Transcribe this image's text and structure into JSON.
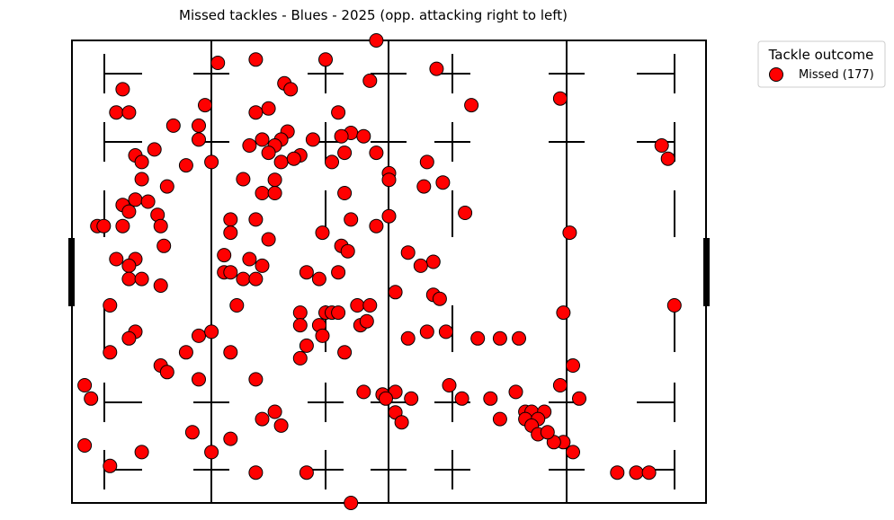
{
  "chart_data": {
    "type": "scatter",
    "title": "Missed tackles - Blues - 2025  (opp. attacking right to left)",
    "xlim": [
      0,
      100
    ],
    "ylim": [
      0,
      70
    ],
    "grid": false,
    "legend_placement": "top-right outside",
    "legend": {
      "title": "Tackle outcome",
      "entries": [
        {
          "label": "Missed (177)",
          "color": "#ff0000"
        }
      ]
    },
    "colors": {
      "marker_fill": "#ff0000",
      "marker_edge": "#000000",
      "pitch_lines": "#000000"
    },
    "series": [
      {
        "label": "Missed (177)",
        "points": [
          [
            48.0,
            70.0
          ],
          [
            23.0,
            66.6
          ],
          [
            29.0,
            67.1
          ],
          [
            40.0,
            67.1
          ],
          [
            57.5,
            65.7
          ],
          [
            8.0,
            62.6
          ],
          [
            33.5,
            63.5
          ],
          [
            34.5,
            62.6
          ],
          [
            47.0,
            63.9
          ],
          [
            77.0,
            61.2
          ],
          [
            21.0,
            60.2
          ],
          [
            31.0,
            59.7
          ],
          [
            63.0,
            60.2
          ],
          [
            7.0,
            59.1
          ],
          [
            9.0,
            59.1
          ],
          [
            29.0,
            59.1
          ],
          [
            42.0,
            59.1
          ],
          [
            16.0,
            57.1
          ],
          [
            20.0,
            57.1
          ],
          [
            34.0,
            56.2
          ],
          [
            44.0,
            56.0
          ],
          [
            42.5,
            55.5
          ],
          [
            46.0,
            55.5
          ],
          [
            20.0,
            55.0
          ],
          [
            30.0,
            55.0
          ],
          [
            33.0,
            55.0
          ],
          [
            38.0,
            55.0
          ],
          [
            28.0,
            54.1
          ],
          [
            32.0,
            54.1
          ],
          [
            13.0,
            53.5
          ],
          [
            31.0,
            53.0
          ],
          [
            10.0,
            52.6
          ],
          [
            36.0,
            52.6
          ],
          [
            43.0,
            53.0
          ],
          [
            48.0,
            53.0
          ],
          [
            93.0,
            54.1
          ],
          [
            94.0,
            52.1
          ],
          [
            11.0,
            51.6
          ],
          [
            22.0,
            51.6
          ],
          [
            33.0,
            51.6
          ],
          [
            35.0,
            52.1
          ],
          [
            41.0,
            51.6
          ],
          [
            56.0,
            51.6
          ],
          [
            18.0,
            51.1
          ],
          [
            27.0,
            49.0
          ],
          [
            11.0,
            49.0
          ],
          [
            50.0,
            49.9
          ],
          [
            50.0,
            48.9
          ],
          [
            15.0,
            47.9
          ],
          [
            32.0,
            48.9
          ],
          [
            55.5,
            47.9
          ],
          [
            58.5,
            48.5
          ],
          [
            10.0,
            45.9
          ],
          [
            30.0,
            46.9
          ],
          [
            32.0,
            46.9
          ],
          [
            43.0,
            46.9
          ],
          [
            8.0,
            45.1
          ],
          [
            12.0,
            45.6
          ],
          [
            9.0,
            44.1
          ],
          [
            13.5,
            43.6
          ],
          [
            62.0,
            43.9
          ],
          [
            25.0,
            42.9
          ],
          [
            29.0,
            42.9
          ],
          [
            44.0,
            42.9
          ],
          [
            4.0,
            41.9
          ],
          [
            5.0,
            41.9
          ],
          [
            8.0,
            41.9
          ],
          [
            14.0,
            41.9
          ],
          [
            48.0,
            41.9
          ],
          [
            50.0,
            43.4
          ],
          [
            25.0,
            40.9
          ],
          [
            39.5,
            40.9
          ],
          [
            31.0,
            39.9
          ],
          [
            78.5,
            40.9
          ],
          [
            42.5,
            38.9
          ],
          [
            43.5,
            38.1
          ],
          [
            53.0,
            37.9
          ],
          [
            24.0,
            37.5
          ],
          [
            7.0,
            36.9
          ],
          [
            10.0,
            36.9
          ],
          [
            9.0,
            35.9
          ],
          [
            30.0,
            35.9
          ],
          [
            57.0,
            36.5
          ],
          [
            24.0,
            34.9
          ],
          [
            25.0,
            34.9
          ],
          [
            27.0,
            33.9
          ],
          [
            29.0,
            33.9
          ],
          [
            37.0,
            34.9
          ],
          [
            42.0,
            34.9
          ],
          [
            9.0,
            33.9
          ],
          [
            11.0,
            33.9
          ],
          [
            39.0,
            33.9
          ],
          [
            14.0,
            32.9
          ],
          [
            51.0,
            31.9
          ],
          [
            57.0,
            31.5
          ],
          [
            6.0,
            29.9
          ],
          [
            26.0,
            29.9
          ],
          [
            58.0,
            30.9
          ],
          [
            36.0,
            28.8
          ],
          [
            40.0,
            28.8
          ],
          [
            41.0,
            28.8
          ],
          [
            42.0,
            28.8
          ],
          [
            77.5,
            28.8
          ],
          [
            95.0,
            29.9
          ],
          [
            36.0,
            26.9
          ],
          [
            39.0,
            26.9
          ],
          [
            45.5,
            26.9
          ],
          [
            46.5,
            27.5
          ],
          [
            10.0,
            25.9
          ],
          [
            20.0,
            25.3
          ],
          [
            9.0,
            24.9
          ],
          [
            22.0,
            25.9
          ],
          [
            39.5,
            25.3
          ],
          [
            53.0,
            24.9
          ],
          [
            56.0,
            25.9
          ],
          [
            59.0,
            25.9
          ],
          [
            67.5,
            24.9
          ],
          [
            64.0,
            24.9
          ],
          [
            70.5,
            24.9
          ],
          [
            37.0,
            23.8
          ],
          [
            6.0,
            22.8
          ],
          [
            18.0,
            22.8
          ],
          [
            25.0,
            22.8
          ],
          [
            43.0,
            22.8
          ],
          [
            36.0,
            21.9
          ],
          [
            79.0,
            20.8
          ],
          [
            14.0,
            20.8
          ],
          [
            15.0,
            19.8
          ],
          [
            20.0,
            18.7
          ],
          [
            29.0,
            18.7
          ],
          [
            2.0,
            17.8
          ],
          [
            59.5,
            17.8
          ],
          [
            77.0,
            17.8
          ],
          [
            51.0,
            16.8
          ],
          [
            49.0,
            16.4
          ],
          [
            3.0,
            15.8
          ],
          [
            49.5,
            15.8
          ],
          [
            53.5,
            15.8
          ],
          [
            61.5,
            15.8
          ],
          [
            66.0,
            15.8
          ],
          [
            80.0,
            15.8
          ],
          [
            51.0,
            13.7
          ],
          [
            71.5,
            13.8
          ],
          [
            72.5,
            13.8
          ],
          [
            74.5,
            13.8
          ],
          [
            32.0,
            13.8
          ],
          [
            30.0,
            12.7
          ],
          [
            71.5,
            12.7
          ],
          [
            73.5,
            12.7
          ],
          [
            33.0,
            11.7
          ],
          [
            52.0,
            12.2
          ],
          [
            67.5,
            12.7
          ],
          [
            72.5,
            11.7
          ],
          [
            19.0,
            10.7
          ],
          [
            73.5,
            10.4
          ],
          [
            25.0,
            9.7
          ],
          [
            77.5,
            9.2
          ],
          [
            2.0,
            8.7
          ],
          [
            11.0,
            7.7
          ],
          [
            22.0,
            7.7
          ],
          [
            79.0,
            7.7
          ],
          [
            6.0,
            5.6
          ],
          [
            29.0,
            4.6
          ],
          [
            37.0,
            4.6
          ],
          [
            86.0,
            4.6
          ],
          [
            89.0,
            4.6
          ],
          [
            91.0,
            4.6
          ],
          [
            44.0,
            0.0
          ],
          [
            76.0,
            9.2
          ],
          [
            46.0,
            16.8
          ],
          [
            70.0,
            16.8
          ],
          [
            75.0,
            10.7
          ],
          [
            45.0,
            29.9
          ],
          [
            47.0,
            29.9
          ],
          [
            28.0,
            36.9
          ],
          [
            55.0,
            35.9
          ],
          [
            14.5,
            38.9
          ]
        ]
      }
    ]
  }
}
